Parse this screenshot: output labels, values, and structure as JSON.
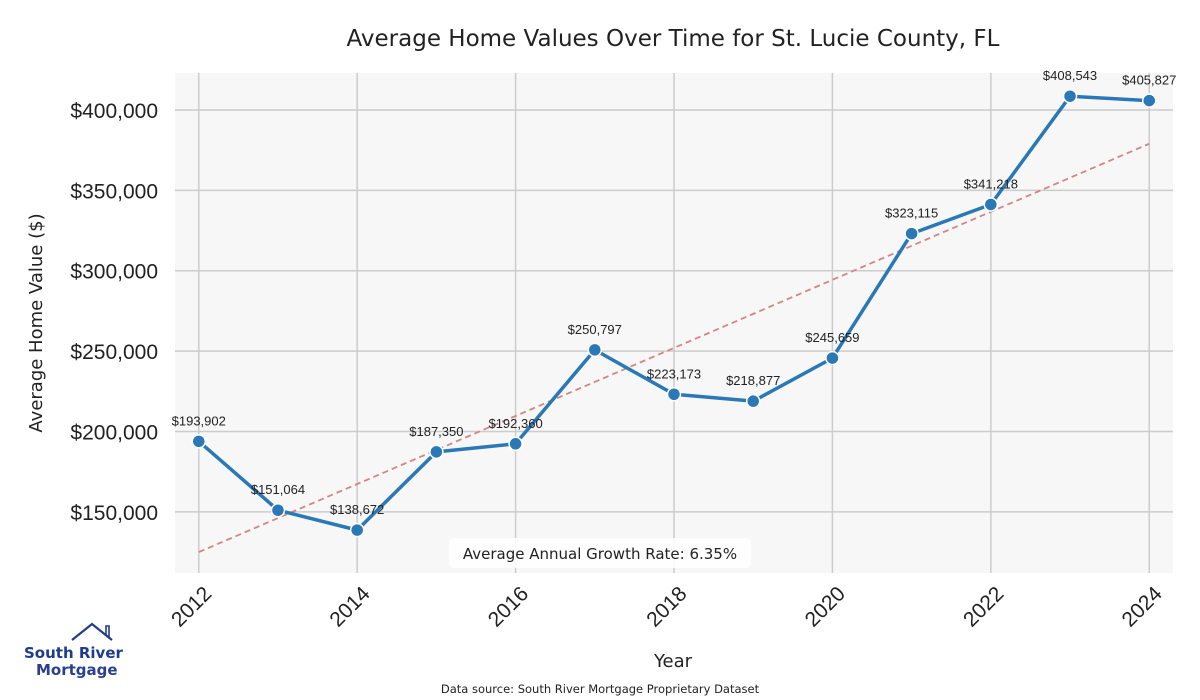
{
  "chart_data": {
    "type": "line",
    "title": "Average Home Values Over Time for St. Lucie County, FL",
    "xlabel": "Year",
    "ylabel": "Average Home Value ($)",
    "x": [
      2012,
      2013,
      2014,
      2015,
      2016,
      2017,
      2018,
      2019,
      2020,
      2021,
      2022,
      2023,
      2024
    ],
    "series": [
      {
        "name": "Average Home Value",
        "values": [
          193902,
          151064,
          138672,
          187350,
          192360,
          250797,
          223173,
          218877,
          245659,
          323115,
          341218,
          408543,
          405827
        ],
        "labels": [
          "$193,902",
          "$151,064",
          "$138,672",
          "$187,350",
          "$192,360",
          "$250,797",
          "$223,173",
          "$218,877",
          "$245,659",
          "$323,115",
          "$341,218",
          "$408,543",
          "$405,827"
        ],
        "color": "#2a78b5"
      }
    ],
    "trendline": {
      "start": [
        2012,
        125000
      ],
      "end": [
        2024,
        379000
      ],
      "color": "#d48585"
    },
    "x_ticks": [
      "2012",
      "2014",
      "2016",
      "2018",
      "2020",
      "2022",
      "2024"
    ],
    "y_ticks": [
      "$150,000",
      "$200,000",
      "$250,000",
      "$300,000",
      "$350,000",
      "$400,000"
    ],
    "xlim": [
      2011.7,
      2024.3
    ],
    "ylim": [
      112000,
      423000
    ],
    "grid": true,
    "annotation": "Average Annual Growth Rate: 6.35%",
    "source": "Data source: South River Mortgage Proprietary Dataset"
  },
  "logo": {
    "line1": "South River",
    "line2": "Mortgage",
    "color1": "#1e3c8c",
    "color2": "#2b3f8f"
  }
}
